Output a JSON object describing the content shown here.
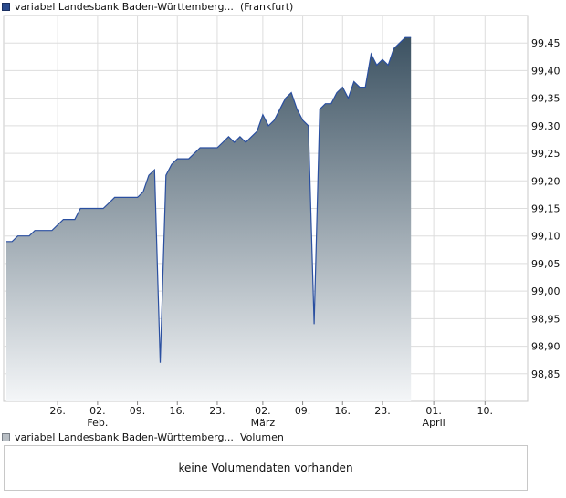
{
  "legend": {
    "price_series": "variabel Landesbank Baden-Württemberg...",
    "exchange": "(Frankfurt)",
    "volume_series": "variabel Landesbank Baden-Württemberg...",
    "volume_label": "Volumen"
  },
  "volume_panel": {
    "message": "keine Volumendaten vorhanden"
  },
  "colors": {
    "line": "#2a4fa0",
    "fill_top": "#3c5262",
    "fill_bottom": "#f4f6f8",
    "grid": "#dddddd"
  },
  "chart_data": {
    "type": "area",
    "ylim": [
      98.8,
      99.5
    ],
    "y_ticks": [
      "98,85",
      "98,90",
      "98,95",
      "99,00",
      "99,05",
      "99,10",
      "99,15",
      "99,20",
      "99,25",
      "99,30",
      "99,35",
      "99,40",
      "99,45"
    ],
    "y_tick_values": [
      98.85,
      98.9,
      98.95,
      99.0,
      99.05,
      99.1,
      99.15,
      99.2,
      99.25,
      99.3,
      99.35,
      99.4,
      99.45
    ],
    "x_ticks": [
      {
        "day": "26.",
        "month": "",
        "date": "2024-01-26"
      },
      {
        "day": "02.",
        "month": "Feb.",
        "date": "2024-02-02"
      },
      {
        "day": "09.",
        "month": "",
        "date": "2024-02-09"
      },
      {
        "day": "16.",
        "month": "",
        "date": "2024-02-16"
      },
      {
        "day": "23.",
        "month": "",
        "date": "2024-02-23"
      },
      {
        "day": "02.",
        "month": "März",
        "date": "2024-03-02"
      },
      {
        "day": "09.",
        "month": "",
        "date": "2024-03-09"
      },
      {
        "day": "16.",
        "month": "",
        "date": "2024-03-16"
      },
      {
        "day": "23.",
        "month": "",
        "date": "2024-03-23"
      },
      {
        "day": "01.",
        "month": "April",
        "date": "2024-04-01"
      },
      {
        "day": "10.",
        "month": "",
        "date": "2024-04-10"
      }
    ],
    "x_range": [
      "2024-01-17",
      "2024-04-17"
    ],
    "series": [
      {
        "points": [
          [
            "2024-01-17",
            99.09
          ],
          [
            "2024-01-18",
            99.09
          ],
          [
            "2024-01-19",
            99.1
          ],
          [
            "2024-01-20",
            99.1
          ],
          [
            "2024-01-21",
            99.1
          ],
          [
            "2024-01-22",
            99.11
          ],
          [
            "2024-01-23",
            99.11
          ],
          [
            "2024-01-24",
            99.11
          ],
          [
            "2024-01-25",
            99.11
          ],
          [
            "2024-01-26",
            99.12
          ],
          [
            "2024-01-27",
            99.13
          ],
          [
            "2024-01-28",
            99.13
          ],
          [
            "2024-01-29",
            99.13
          ],
          [
            "2024-01-30",
            99.15
          ],
          [
            "2024-01-31",
            99.15
          ],
          [
            "2024-02-01",
            99.15
          ],
          [
            "2024-02-02",
            99.15
          ],
          [
            "2024-02-03",
            99.15
          ],
          [
            "2024-02-04",
            99.16
          ],
          [
            "2024-02-05",
            99.17
          ],
          [
            "2024-02-06",
            99.17
          ],
          [
            "2024-02-07",
            99.17
          ],
          [
            "2024-02-08",
            99.17
          ],
          [
            "2024-02-09",
            99.17
          ],
          [
            "2024-02-10",
            99.18
          ],
          [
            "2024-02-11",
            99.21
          ],
          [
            "2024-02-12",
            99.22
          ],
          [
            "2024-02-13",
            98.87
          ],
          [
            "2024-02-14",
            99.21
          ],
          [
            "2024-02-15",
            99.23
          ],
          [
            "2024-02-16",
            99.24
          ],
          [
            "2024-02-17",
            99.24
          ],
          [
            "2024-02-18",
            99.24
          ],
          [
            "2024-02-19",
            99.25
          ],
          [
            "2024-02-20",
            99.26
          ],
          [
            "2024-02-21",
            99.26
          ],
          [
            "2024-02-22",
            99.26
          ],
          [
            "2024-02-23",
            99.26
          ],
          [
            "2024-02-24",
            99.27
          ],
          [
            "2024-02-25",
            99.28
          ],
          [
            "2024-02-26",
            99.27
          ],
          [
            "2024-02-27",
            99.28
          ],
          [
            "2024-02-28",
            99.27
          ],
          [
            "2024-02-29",
            99.28
          ],
          [
            "2024-03-01",
            99.29
          ],
          [
            "2024-03-02",
            99.32
          ],
          [
            "2024-03-03",
            99.3
          ],
          [
            "2024-03-04",
            99.31
          ],
          [
            "2024-03-05",
            99.33
          ],
          [
            "2024-03-06",
            99.35
          ],
          [
            "2024-03-07",
            99.36
          ],
          [
            "2024-03-08",
            99.33
          ],
          [
            "2024-03-09",
            99.31
          ],
          [
            "2024-03-10",
            99.3
          ],
          [
            "2024-03-11",
            98.94
          ],
          [
            "2024-03-12",
            99.33
          ],
          [
            "2024-03-13",
            99.34
          ],
          [
            "2024-03-14",
            99.34
          ],
          [
            "2024-03-15",
            99.36
          ],
          [
            "2024-03-16",
            99.37
          ],
          [
            "2024-03-17",
            99.35
          ],
          [
            "2024-03-18",
            99.38
          ],
          [
            "2024-03-19",
            99.37
          ],
          [
            "2024-03-20",
            99.37
          ],
          [
            "2024-03-21",
            99.43
          ],
          [
            "2024-03-22",
            99.41
          ],
          [
            "2024-03-23",
            99.42
          ],
          [
            "2024-03-24",
            99.41
          ],
          [
            "2024-03-25",
            99.44
          ],
          [
            "2024-03-26",
            99.45
          ],
          [
            "2024-03-27",
            99.46
          ],
          [
            "2024-03-28",
            99.46
          ]
        ]
      }
    ]
  }
}
